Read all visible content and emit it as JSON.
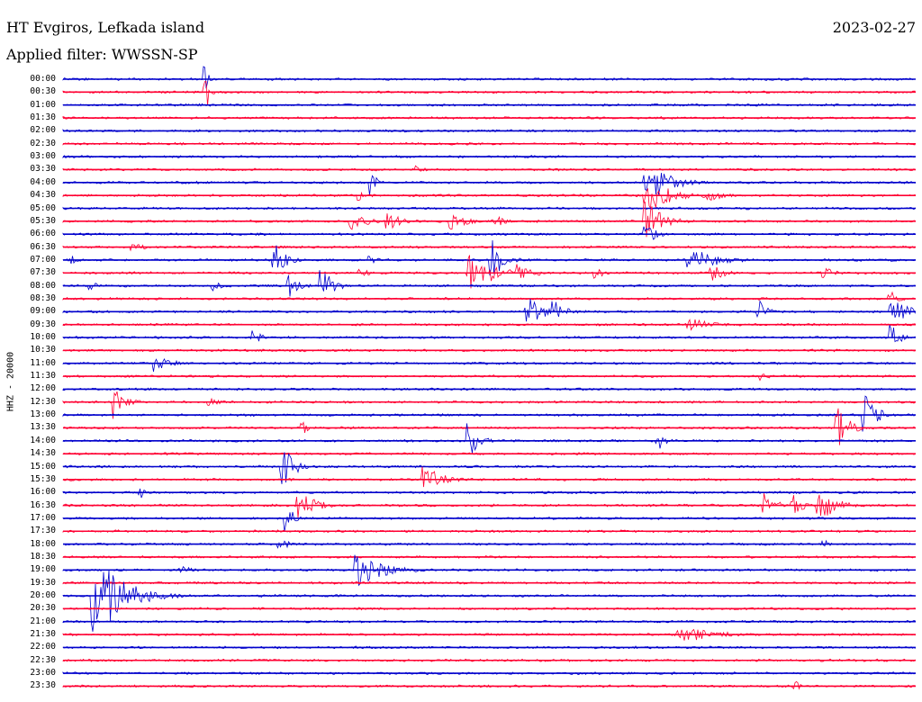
{
  "header": {
    "title": "HT Evgiros, Lefkada island",
    "filter": "Applied filter: WWSSN-SP",
    "date": "2023-02-27"
  },
  "channel": "HHZ - 20000",
  "colors": {
    "even": "#0000cc",
    "odd": "#ff0033"
  },
  "traces": [
    {
      "time": "00:00"
    },
    {
      "time": "00:30"
    },
    {
      "time": "01:00"
    },
    {
      "time": "01:30"
    },
    {
      "time": "02:00"
    },
    {
      "time": "02:30"
    },
    {
      "time": "03:00"
    },
    {
      "time": "03:30"
    },
    {
      "time": "04:00"
    },
    {
      "time": "04:30"
    },
    {
      "time": "05:00"
    },
    {
      "time": "05:30"
    },
    {
      "time": "06:00"
    },
    {
      "time": "06:30"
    },
    {
      "time": "07:00"
    },
    {
      "time": "07:30"
    },
    {
      "time": "08:00"
    },
    {
      "time": "08:30"
    },
    {
      "time": "09:00"
    },
    {
      "time": "09:30"
    },
    {
      "time": "10:00"
    },
    {
      "time": "10:30"
    },
    {
      "time": "11:00"
    },
    {
      "time": "11:30"
    },
    {
      "time": "12:00"
    },
    {
      "time": "12:30"
    },
    {
      "time": "13:00"
    },
    {
      "time": "13:30"
    },
    {
      "time": "14:00"
    },
    {
      "time": "14:30"
    },
    {
      "time": "15:00"
    },
    {
      "time": "15:30"
    },
    {
      "time": "16:00"
    },
    {
      "time": "16:30"
    },
    {
      "time": "17:00"
    },
    {
      "time": "17:30"
    },
    {
      "time": "18:00"
    },
    {
      "time": "18:30"
    },
    {
      "time": "19:00"
    },
    {
      "time": "19:30"
    },
    {
      "time": "20:00"
    },
    {
      "time": "20:30"
    },
    {
      "time": "21:00"
    },
    {
      "time": "21:30"
    },
    {
      "time": "22:00"
    },
    {
      "time": "22:30"
    },
    {
      "time": "23:00"
    },
    {
      "time": "23:30"
    }
  ]
}
